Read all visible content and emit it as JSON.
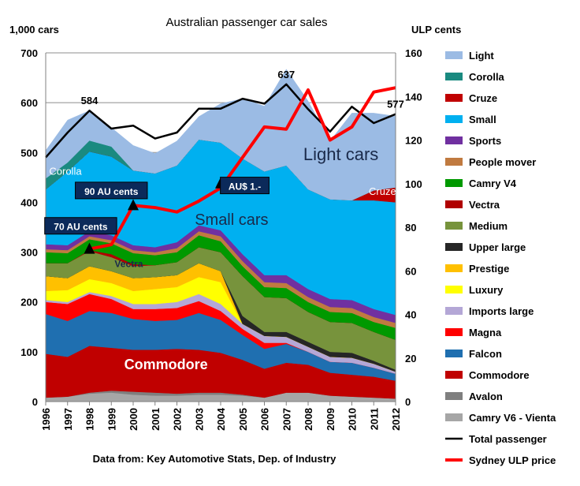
{
  "chart_data": {
    "type": "area",
    "title": "Australian passenger car sales",
    "left_axis_label": "1,000 cars",
    "right_axis_label": "ULP cents",
    "source_note": "Data from: Key Automotive Stats, Dep. of Industry",
    "x": [
      "1996",
      "1997",
      "1998",
      "1999",
      "2000",
      "2001",
      "2002",
      "2003",
      "2004",
      "2005",
      "2006",
      "2007",
      "2008",
      "2009",
      "2010",
      "2011",
      "2012"
    ],
    "ylim": [
      0,
      700
    ],
    "y_ticks": [
      "0",
      "100",
      "200",
      "300",
      "400",
      "500",
      "600",
      "700"
    ],
    "y2lim": [
      0,
      160
    ],
    "y2_ticks": [
      "0",
      "20",
      "40",
      "60",
      "80",
      "100",
      "120",
      "140",
      "160"
    ],
    "grid": true,
    "legend_position": "right",
    "stack_series": [
      {
        "name": "Camry V6 - Vienta",
        "color": "#a6a6a6",
        "values": [
          8,
          10,
          16,
          18,
          14,
          12,
          12,
          14,
          14,
          12,
          8,
          18,
          18,
          12,
          10,
          8,
          6
        ]
      },
      {
        "name": "Avalon",
        "color": "#7f7f7f",
        "values": [
          0,
          0,
          2,
          4,
          6,
          6,
          4,
          4,
          4,
          2,
          0,
          0,
          0,
          0,
          0,
          0,
          0
        ]
      },
      {
        "name": "Commodore",
        "color": "#c00000",
        "values": [
          88,
          80,
          94,
          86,
          84,
          86,
          90,
          86,
          80,
          70,
          58,
          60,
          56,
          46,
          44,
          42,
          36
        ]
      },
      {
        "name": "Falcon",
        "color": "#1f6fb0",
        "values": [
          80,
          72,
          70,
          70,
          62,
          58,
          58,
          74,
          66,
          50,
          40,
          38,
          26,
          22,
          24,
          18,
          14
        ]
      },
      {
        "name": "Magna",
        "color": "#ff0000",
        "values": [
          24,
          34,
          34,
          28,
          20,
          24,
          24,
          24,
          18,
          12,
          12,
          2,
          0,
          0,
          0,
          0,
          0
        ]
      },
      {
        "name": "Imports large",
        "color": "#b4a7d6",
        "values": [
          4,
          4,
          4,
          6,
          10,
          10,
          12,
          14,
          14,
          10,
          14,
          12,
          10,
          10,
          10,
          8,
          4
        ]
      },
      {
        "name": "Luxury",
        "color": "#ffff00",
        "values": [
          18,
          24,
          26,
          26,
          26,
          30,
          30,
          34,
          44,
          0,
          0,
          0,
          0,
          0,
          0,
          0,
          0
        ]
      },
      {
        "name": "Prestige",
        "color": "#ffc000",
        "values": [
          30,
          24,
          26,
          24,
          26,
          24,
          24,
          28,
          22,
          0,
          0,
          0,
          0,
          0,
          0,
          0,
          0
        ]
      },
      {
        "name": "Upper large",
        "color": "#262626",
        "values": [
          0,
          0,
          0,
          0,
          0,
          0,
          0,
          0,
          0,
          16,
          8,
          10,
          10,
          10,
          10,
          6,
          4
        ]
      },
      {
        "name": "Medium",
        "color": "#77933c",
        "values": [
          26,
          30,
          30,
          28,
          24,
          24,
          26,
          32,
          38,
          80,
          70,
          68,
          60,
          60,
          60,
          58,
          60
        ]
      },
      {
        "name": "Vectra",
        "color": "#b00000",
        "values": [
          0,
          0,
          2,
          6,
          4,
          0,
          0,
          0,
          0,
          0,
          0,
          0,
          0,
          0,
          0,
          0,
          0
        ]
      },
      {
        "name": "Camry V4",
        "color": "#009900",
        "values": [
          22,
          20,
          22,
          22,
          22,
          20,
          20,
          24,
          22,
          20,
          20,
          20,
          20,
          20,
          20,
          20,
          24
        ]
      },
      {
        "name": "People mover",
        "color": "#c07a40",
        "values": [
          6,
          6,
          6,
          6,
          6,
          6,
          8,
          8,
          10,
          10,
          10,
          10,
          10,
          10,
          10,
          10,
          10
        ]
      },
      {
        "name": "Sports",
        "color": "#7030a0",
        "values": [
          10,
          10,
          10,
          10,
          10,
          10,
          12,
          12,
          12,
          14,
          14,
          16,
          16,
          16,
          16,
          16,
          16
        ]
      },
      {
        "name": "Small",
        "color": "#00b0f0",
        "values": [
          110,
          148,
          160,
          158,
          150,
          148,
          154,
          172,
          176,
          192,
          208,
          220,
          200,
          200,
          200,
          218,
          226
        ]
      },
      {
        "name": "Cruze",
        "color": "#c00000",
        "values": [
          0,
          0,
          0,
          0,
          0,
          0,
          0,
          0,
          0,
          0,
          0,
          0,
          0,
          0,
          0,
          20,
          30
        ]
      },
      {
        "name": "Corolla",
        "color": "#1a8a80",
        "values": [
          22,
          18,
          22,
          20,
          0,
          0,
          0,
          0,
          0,
          0,
          0,
          0,
          0,
          0,
          0,
          0,
          0
        ]
      },
      {
        "name": "Light",
        "color": "#9bbbe4",
        "values": [
          56,
          85,
          60,
          38,
          50,
          40,
          49,
          46,
          78,
          120,
          131,
          193,
          177,
          117,
          175,
          155,
          143
        ]
      }
    ],
    "lines": [
      {
        "name": "Total passenger",
        "color": "#000000",
        "axis": "left",
        "values": [
          490,
          540,
          584,
          548,
          554,
          528,
          540,
          588,
          588,
          608,
          598,
          637,
          587,
          542,
          592,
          559,
          577
        ]
      },
      {
        "name": "Sydney ULP price",
        "color": "#ff0000",
        "axis": "right",
        "values": [
          null,
          null,
          70,
          72,
          90,
          89,
          87,
          92,
          98,
          null,
          126,
          125,
          143,
          120,
          126,
          142,
          144
        ]
      }
    ],
    "legend": [
      "Light",
      "Corolla",
      "Cruze",
      "Small",
      "Sports",
      "People mover",
      "Camry V4",
      "Vectra",
      "Medium",
      "Upper large",
      "Prestige",
      "Luxury",
      "Imports large",
      "Magna",
      "Falcon",
      "Commodore",
      "Avalon",
      "Camry V6 - Vienta",
      "Total passenger",
      "Sydney ULP price"
    ],
    "value_labels": [
      {
        "year": "1998",
        "text": "584"
      },
      {
        "year": "2007",
        "text": "637"
      },
      {
        "year": "2012",
        "text": "577"
      }
    ],
    "area_labels": [
      {
        "text": "Light  cars",
        "year": 2009.5,
        "y": 485,
        "color": "#1a2a4a",
        "size": 22,
        "weight": "normal"
      },
      {
        "text": "Small cars",
        "year": 2004.5,
        "y": 355,
        "color": "#1a2a4a",
        "size": 20,
        "weight": "normal"
      },
      {
        "text": "Commodore",
        "year": 2001.5,
        "y": 65,
        "color": "#ffffff",
        "size": 18,
        "weight": "bold"
      },
      {
        "text": "Corolla",
        "year": 1996.9,
        "y": 455,
        "color": "#ffffff",
        "size": 13,
        "weight": "normal"
      },
      {
        "text": "Cruze",
        "year": 2011.4,
        "y": 415,
        "color": "#ffffff",
        "size": 13,
        "weight": "normal"
      },
      {
        "text": "Vectra",
        "year": 1999.8,
        "y": 270,
        "color": "#1a2a4a",
        "size": 12,
        "weight": "bold"
      }
    ],
    "price_callouts": [
      {
        "text": "70 AU cents",
        "year": 1998,
        "price": 70,
        "box_year": 1997.6,
        "box_y": 352
      },
      {
        "text": "90 AU cents",
        "year": 2000,
        "price": 90,
        "box_year": 1999,
        "box_y": 423
      },
      {
        "text": "AU$ 1.-",
        "year": 2004,
        "price": 100,
        "box_year": 2005.1,
        "box_y": 433
      }
    ]
  }
}
